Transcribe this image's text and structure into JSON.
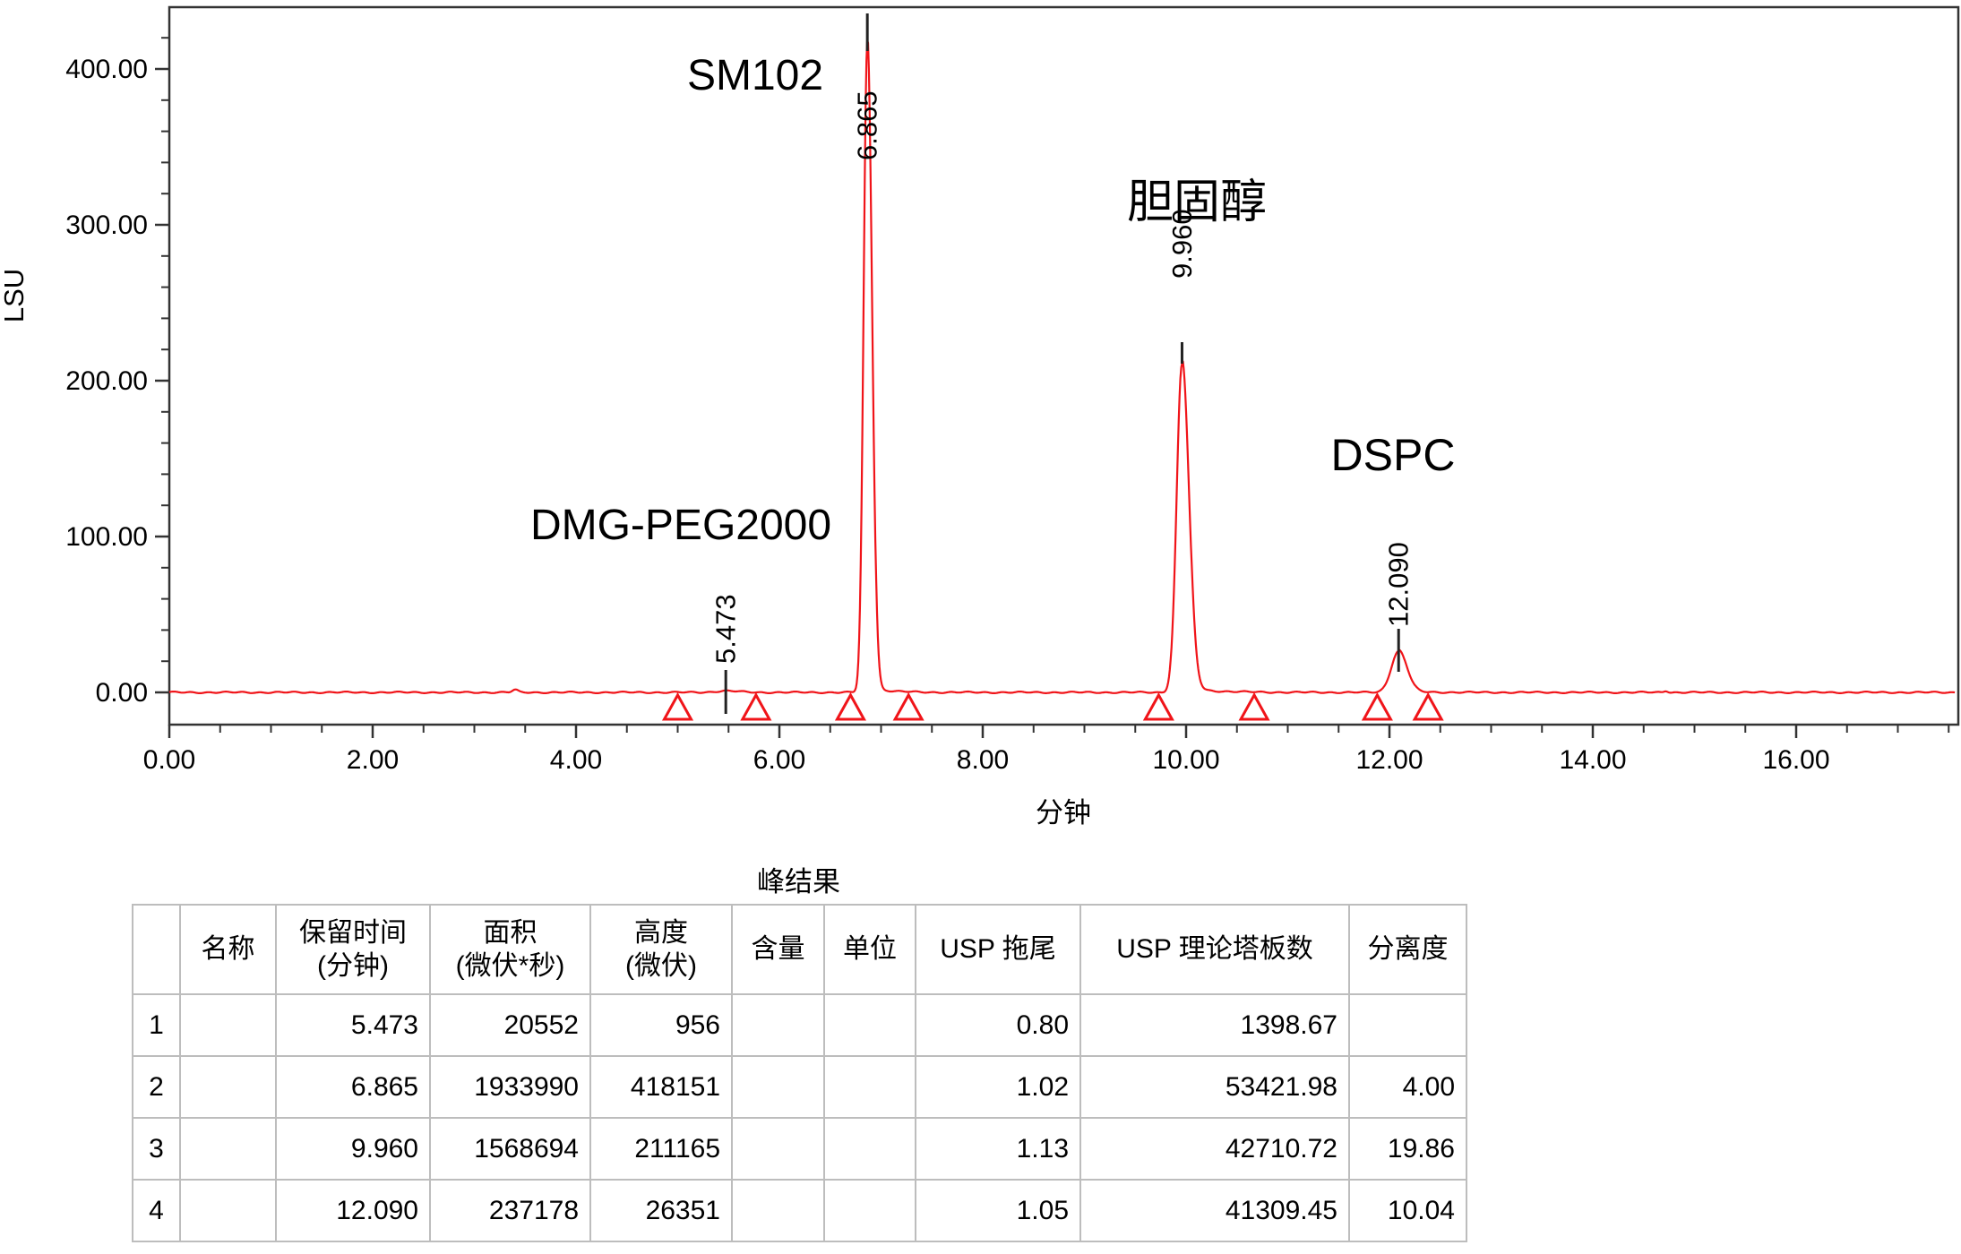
{
  "chart_data": {
    "type": "line",
    "title": "",
    "xlabel": "分钟",
    "ylabel": "LSU",
    "x_range": [
      0,
      17.56
    ],
    "y_range": [
      0,
      438
    ],
    "x_tick_labels": [
      "0.00",
      "2.00",
      "4.00",
      "6.00",
      "8.00",
      "10.00",
      "12.00",
      "14.00",
      "16.00"
    ],
    "y_tick_labels": [
      "0.00",
      "100.00",
      "200.00",
      "300.00",
      "400.00"
    ],
    "x_major_step_min": 2,
    "x_minor_step_min": 0.5,
    "y_major_step_lsu": 100,
    "y_minor_step_lsu": 20,
    "grid": "off",
    "legend": "none",
    "trace_color": "#f01419",
    "axis_color": "#333333",
    "peaks": [
      {
        "name": "DMG-PEG2000",
        "rt_label": "5.473",
        "retention_time": 5.473,
        "height_lsu": 0.96,
        "area_uv_s": 20552,
        "height_uv": 956
      },
      {
        "name": "SM102",
        "rt_label": "6.865",
        "retention_time": 6.865,
        "height_lsu": 418.15,
        "area_uv_s": 1933990,
        "height_uv": 418151
      },
      {
        "name": "胆固醇",
        "rt_label": "9.960",
        "retention_time": 9.96,
        "height_lsu": 211.17,
        "area_uv_s": 1568694,
        "height_uv": 211165
      },
      {
        "name": "DSPC",
        "rt_label": "12.090",
        "retention_time": 12.09,
        "height_lsu": 26.35,
        "area_uv_s": 237178,
        "height_uv": 26351
      }
    ],
    "integration_markers_min": [
      5.0,
      5.77,
      6.7,
      7.27,
      9.73,
      10.67,
      11.88,
      12.38
    ]
  },
  "table": {
    "title": "峰结果",
    "columns": [
      "",
      "名称",
      "保留时间\n(分钟)",
      "面积\n(微伏*秒)",
      "高度\n(微伏)",
      "含量",
      "单位",
      "USP 拖尾",
      "USP 理论塔板数",
      "分离度"
    ],
    "rows": [
      [
        "1",
        "",
        "5.473",
        "20552",
        "956",
        "",
        "",
        "0.80",
        "1398.67",
        ""
      ],
      [
        "2",
        "",
        "6.865",
        "1933990",
        "418151",
        "",
        "",
        "1.02",
        "53421.98",
        "4.00"
      ],
      [
        "3",
        "",
        "9.960",
        "1568694",
        "211165",
        "",
        "",
        "1.13",
        "42710.72",
        "19.86"
      ],
      [
        "4",
        "",
        "12.090",
        "237178",
        "26351",
        "",
        "",
        "1.05",
        "41309.45",
        "10.04"
      ]
    ]
  }
}
